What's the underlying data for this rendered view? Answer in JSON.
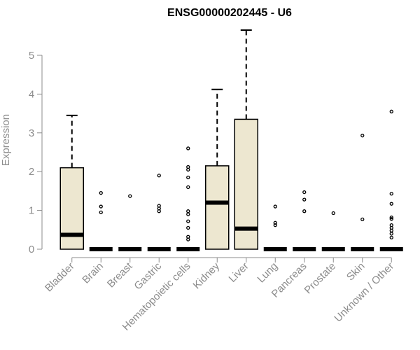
{
  "chart_data": {
    "type": "box",
    "title": "ENSG00000202445 - U6",
    "ylabel": "Expression",
    "xlabel": "",
    "ylim": [
      0,
      5.5
    ],
    "yticks": [
      0,
      1,
      2,
      3,
      4,
      5
    ],
    "grid": false,
    "colors": {
      "box_fill": "#ede7d0",
      "box_stroke": "#000000",
      "axis": "#8c8c8c"
    },
    "categories": [
      "Bladder",
      "Brain",
      "Breast",
      "Gastric",
      "Hematopoietic cells",
      "Kidney",
      "Liver",
      "Lung",
      "Pancreas",
      "Prostate",
      "Skin",
      "Unknown / Other"
    ],
    "boxes": [
      {
        "q1": 0,
        "median": 0.37,
        "q3": 2.1,
        "whisker_low": 0,
        "whisker_high": 3.45,
        "outliers": []
      },
      {
        "q1": 0,
        "median": 0,
        "q3": 0,
        "whisker_low": 0,
        "whisker_high": 0,
        "outliers": [
          0.95,
          1.1,
          1.45
        ]
      },
      {
        "q1": 0,
        "median": 0,
        "q3": 0,
        "whisker_low": 0,
        "whisker_high": 0,
        "outliers": [
          1.37
        ]
      },
      {
        "q1": 0,
        "median": 0,
        "q3": 0,
        "whisker_low": 0,
        "whisker_high": 0,
        "outliers": [
          0.98,
          1.05,
          1.12,
          1.9
        ]
      },
      {
        "q1": 0,
        "median": 0,
        "q3": 0,
        "whisker_low": 0,
        "whisker_high": 0,
        "outliers": [
          0.25,
          0.32,
          0.55,
          0.72,
          0.9,
          0.98,
          1.6,
          1.85,
          2.05,
          2.12,
          2.6
        ]
      },
      {
        "q1": 0,
        "median": 1.2,
        "q3": 2.15,
        "whisker_low": 0,
        "whisker_high": 4.12,
        "outliers": []
      },
      {
        "q1": 0,
        "median": 0.53,
        "q3": 3.35,
        "whisker_low": 0,
        "whisker_high": 5.65,
        "outliers": []
      },
      {
        "q1": 0,
        "median": 0,
        "q3": 0,
        "whisker_low": 0,
        "whisker_high": 0,
        "outliers": [
          0.62,
          0.68,
          1.1
        ]
      },
      {
        "q1": 0,
        "median": 0,
        "q3": 0,
        "whisker_low": 0,
        "whisker_high": 0,
        "outliers": [
          0.98,
          1.28,
          1.47
        ]
      },
      {
        "q1": 0,
        "median": 0,
        "q3": 0,
        "whisker_low": 0,
        "whisker_high": 0,
        "outliers": [
          0.93
        ]
      },
      {
        "q1": 0,
        "median": 0,
        "q3": 0,
        "whisker_low": 0,
        "whisker_high": 0,
        "outliers": [
          0.77,
          2.93
        ]
      },
      {
        "q1": 0,
        "median": 0,
        "q3": 0,
        "whisker_low": 0,
        "whisker_high": 0,
        "outliers": [
          0.3,
          0.4,
          0.48,
          0.55,
          0.62,
          0.78,
          0.82,
          1.17,
          1.43,
          3.55
        ]
      }
    ]
  }
}
